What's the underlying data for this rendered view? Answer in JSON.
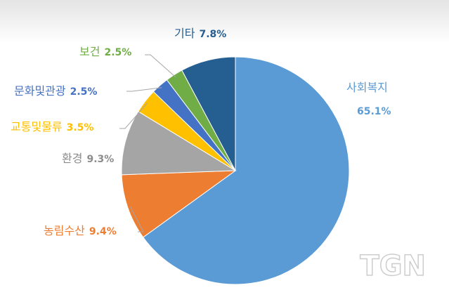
{
  "chart_data": {
    "type": "pie",
    "categories": [
      "사회복지",
      "농림수산",
      "환경",
      "교통및물류",
      "문화및관광",
      "보건",
      "기타"
    ],
    "values": [
      65.1,
      9.4,
      9.3,
      3.5,
      2.5,
      2.5,
      7.8
    ],
    "value_labels": [
      "65.1%",
      "9.4%",
      "9.3%",
      "3.5%",
      "2.5%",
      "2.5%",
      "7.8%"
    ],
    "colors": [
      "#5b9bd5",
      "#ed7d31",
      "#a5a5a5",
      "#ffc000",
      "#4472c4",
      "#70ad47",
      "#255e91"
    ],
    "watermark": "TGN"
  }
}
